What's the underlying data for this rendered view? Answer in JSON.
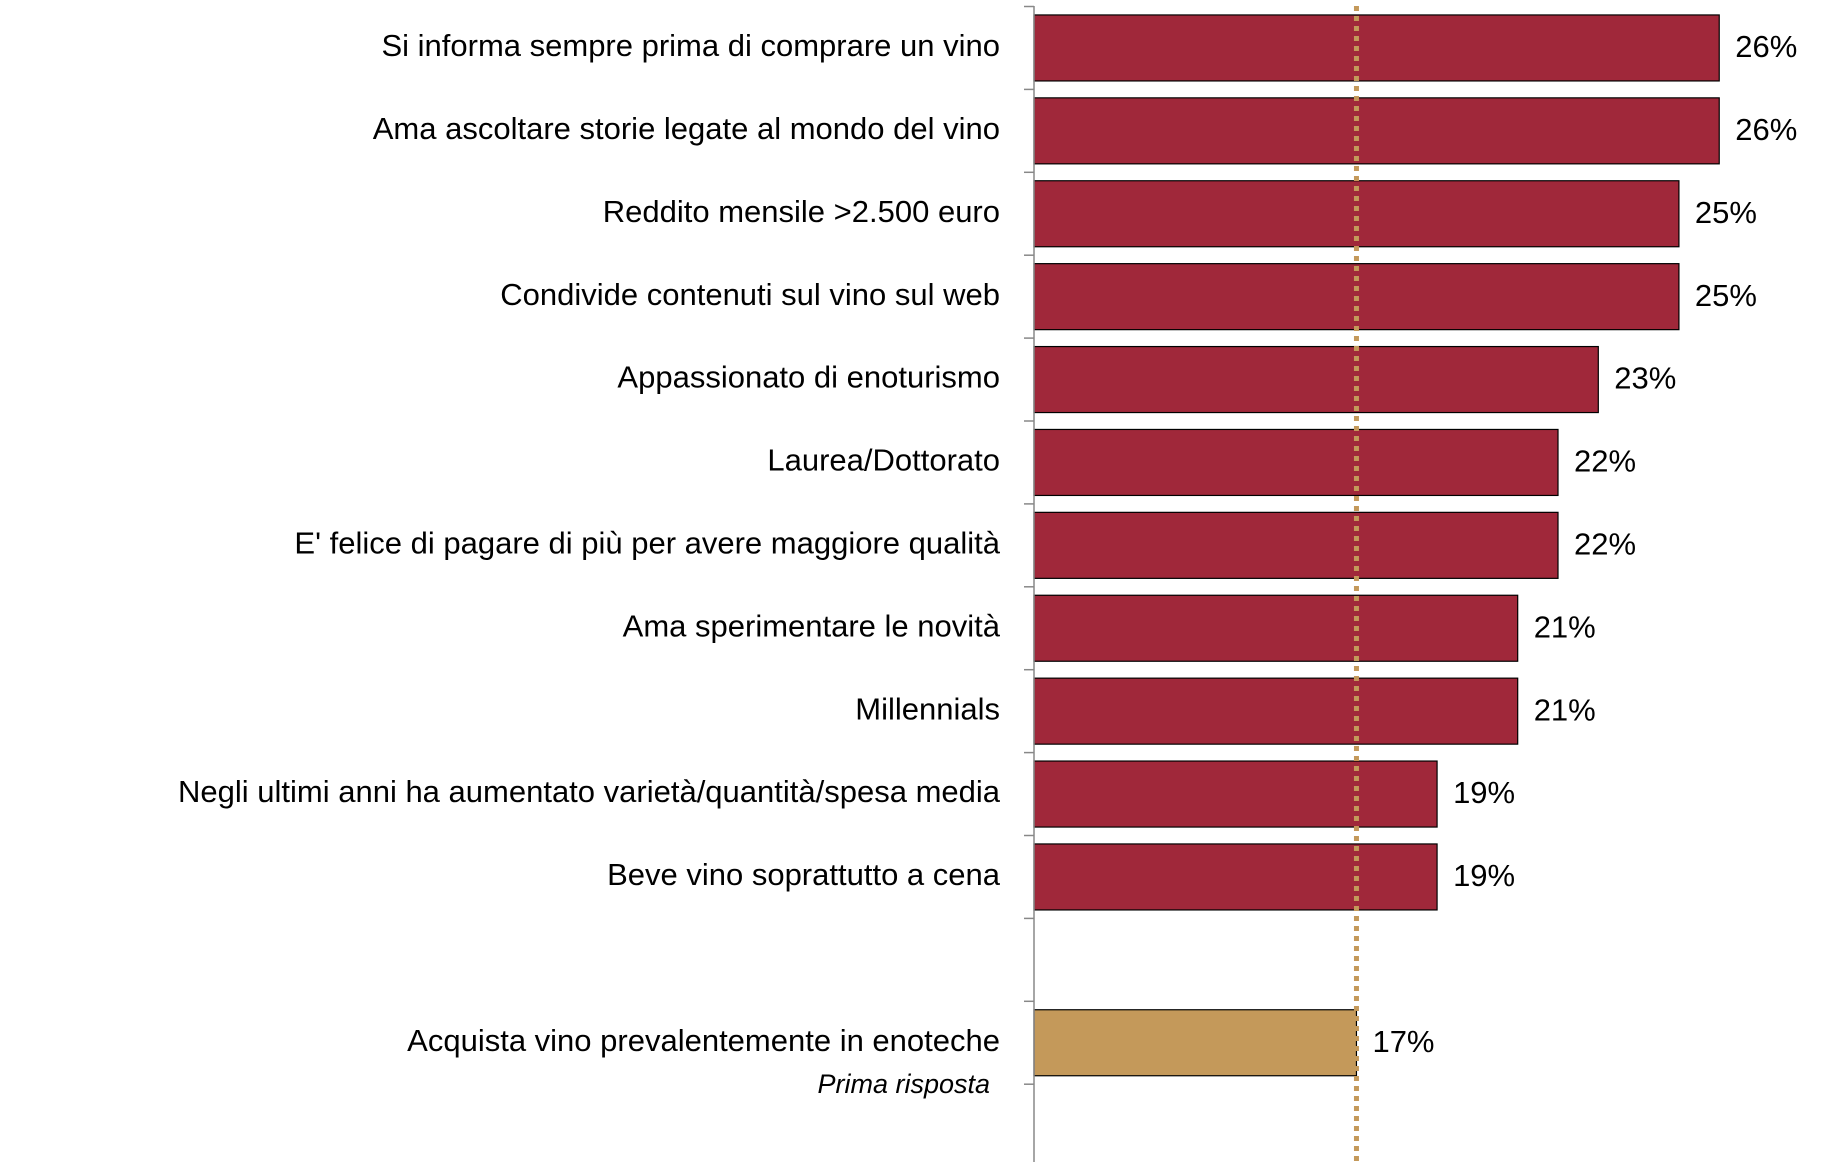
{
  "chart_data": {
    "type": "bar",
    "orientation": "horizontal",
    "categories": [
      "Si informa sempre prima di comprare un vino",
      "Ama ascoltare storie legate al mondo del vino",
      "Reddito mensile >2.500 euro",
      "Condivide contenuti sul vino sul web",
      "Appassionato di enoturismo",
      "Laurea/Dottorato",
      "E' felice di pagare di più per avere maggiore qualità",
      "Ama sperimentare le novità",
      "Millennials",
      "Negli ultimi anni ha aumentato varietà/quantità/spesa media",
      "Beve vino soprattutto a cena",
      null,
      "Acquista vino prevalentemente in enoteche"
    ],
    "values": [
      26,
      26,
      25,
      25,
      23,
      22,
      22,
      21,
      21,
      19,
      19,
      null,
      17
    ],
    "value_labels": [
      "26%",
      "26%",
      "25%",
      "25%",
      "23%",
      "22%",
      "22%",
      "21%",
      "21%",
      "19%",
      "19%",
      null,
      "17%"
    ],
    "colors": [
      "#a0283a",
      "#a0283a",
      "#a0283a",
      "#a0283a",
      "#a0283a",
      "#a0283a",
      "#a0283a",
      "#a0283a",
      "#a0283a",
      "#a0283a",
      "#a0283a",
      null,
      "#c4995a"
    ],
    "annotation": "Prima risposta",
    "reference_value": 17,
    "reference_color": "#c4995a",
    "xlim": [
      9,
      28.5
    ]
  }
}
